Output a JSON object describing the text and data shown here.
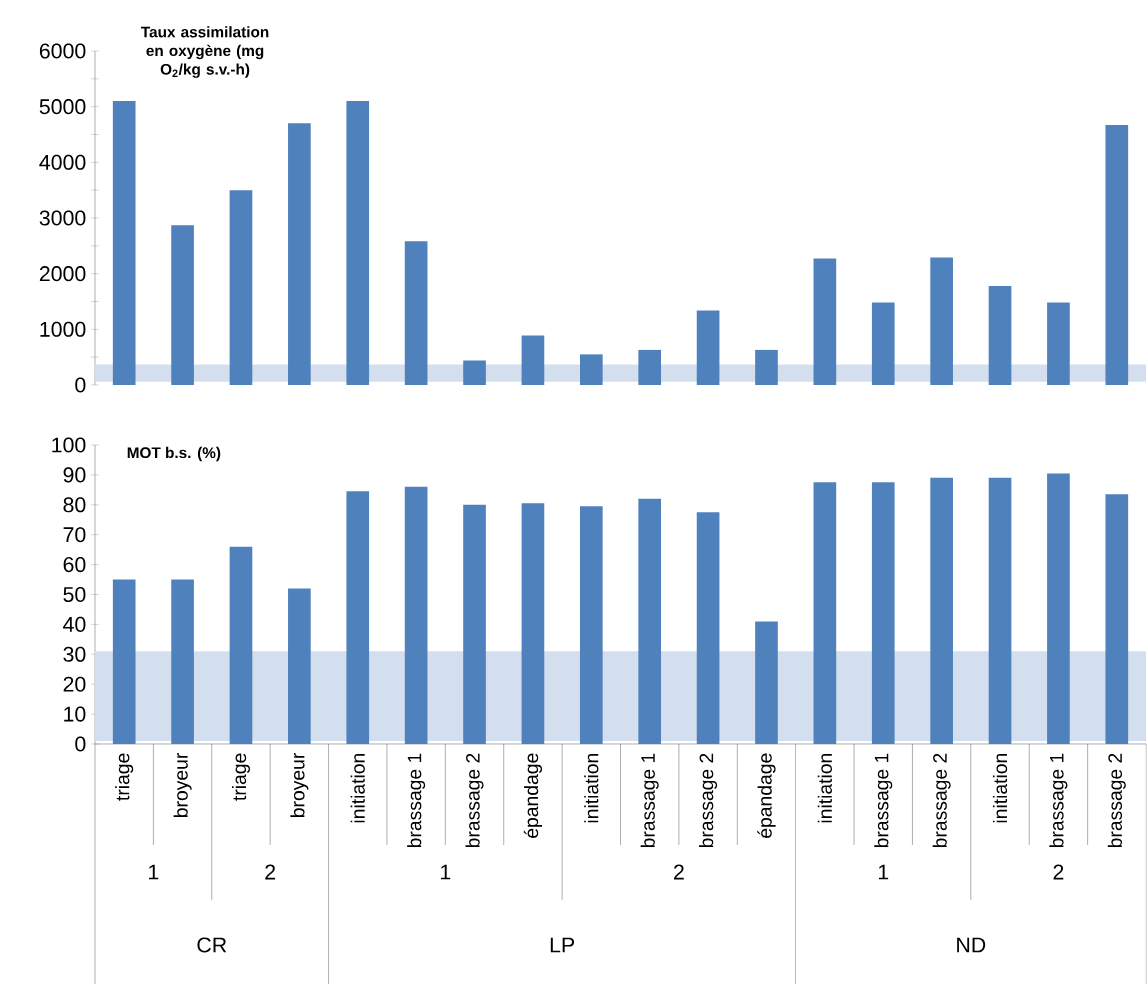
{
  "chart_data": [
    {
      "type": "bar",
      "title": "Taux assimilation en oxygène (mg O$_{2}$/kg s.v.-h)",
      "categories": [
        null,
        null,
        null,
        null,
        null,
        null,
        null,
        null,
        null,
        null,
        null,
        null,
        null,
        null,
        null,
        null,
        null,
        null
      ],
      "values": [
        5100,
        2870,
        3500,
        4700,
        5100,
        2580,
        440,
        890,
        550,
        630,
        1340,
        630,
        2270,
        1480,
        2290,
        1780,
        1480,
        4670
      ],
      "color": "#4f81bd",
      "ylim": [
        0,
        6000
      ],
      "yticks": [
        0,
        {
          "value": 500,
          "label": null
        },
        1000,
        {
          "value": 1500,
          "label": null
        },
        2000,
        {
          "value": 2500,
          "label": null
        },
        3000,
        {
          "value": 3500,
          "label": null
        },
        4000,
        {
          "value": 4500,
          "label": null
        },
        5000,
        {
          "value": 5500,
          "label": null
        },
        6000
      ],
      "tick_labels": "y",
      "bands": [
        {
          "axis": "y",
          "from": 60,
          "to": 370,
          "color": "#d3dfee"
        }
      ]
    },
    {
      "type": "bar",
      "title": "MOT b.s. (%)",
      "categories": [
        "triage",
        "broyeur",
        "triage",
        "broyeur",
        "initiation",
        "brassage 1",
        "brassage 2",
        "épandage",
        "initiation",
        "brassage 1",
        "brassage 2",
        "épandage",
        "initiation",
        "brassage 1",
        "brassage 2",
        "initiation",
        "brassage 1",
        "brassage 2"
      ],
      "values": [
        55,
        55,
        66,
        52,
        84.5,
        86,
        80,
        80.5,
        79.5,
        82,
        77.5,
        41,
        87.5,
        87.5,
        89,
        89,
        90.5,
        83.5
      ],
      "color": "#4f81bd",
      "ylim": [
        0,
        100
      ],
      "yticks": [
        0,
        10,
        20,
        30,
        40,
        50,
        60,
        70,
        80,
        90,
        100
      ],
      "bands": [
        {
          "axis": "y",
          "from": 1,
          "to": 31,
          "color": "#d3dfee"
        }
      ],
      "annotations": [
        "1",
        "2",
        "1",
        "2",
        "1",
        "2",
        "CR",
        "LP",
        "ND"
      ]
    }
  ]
}
